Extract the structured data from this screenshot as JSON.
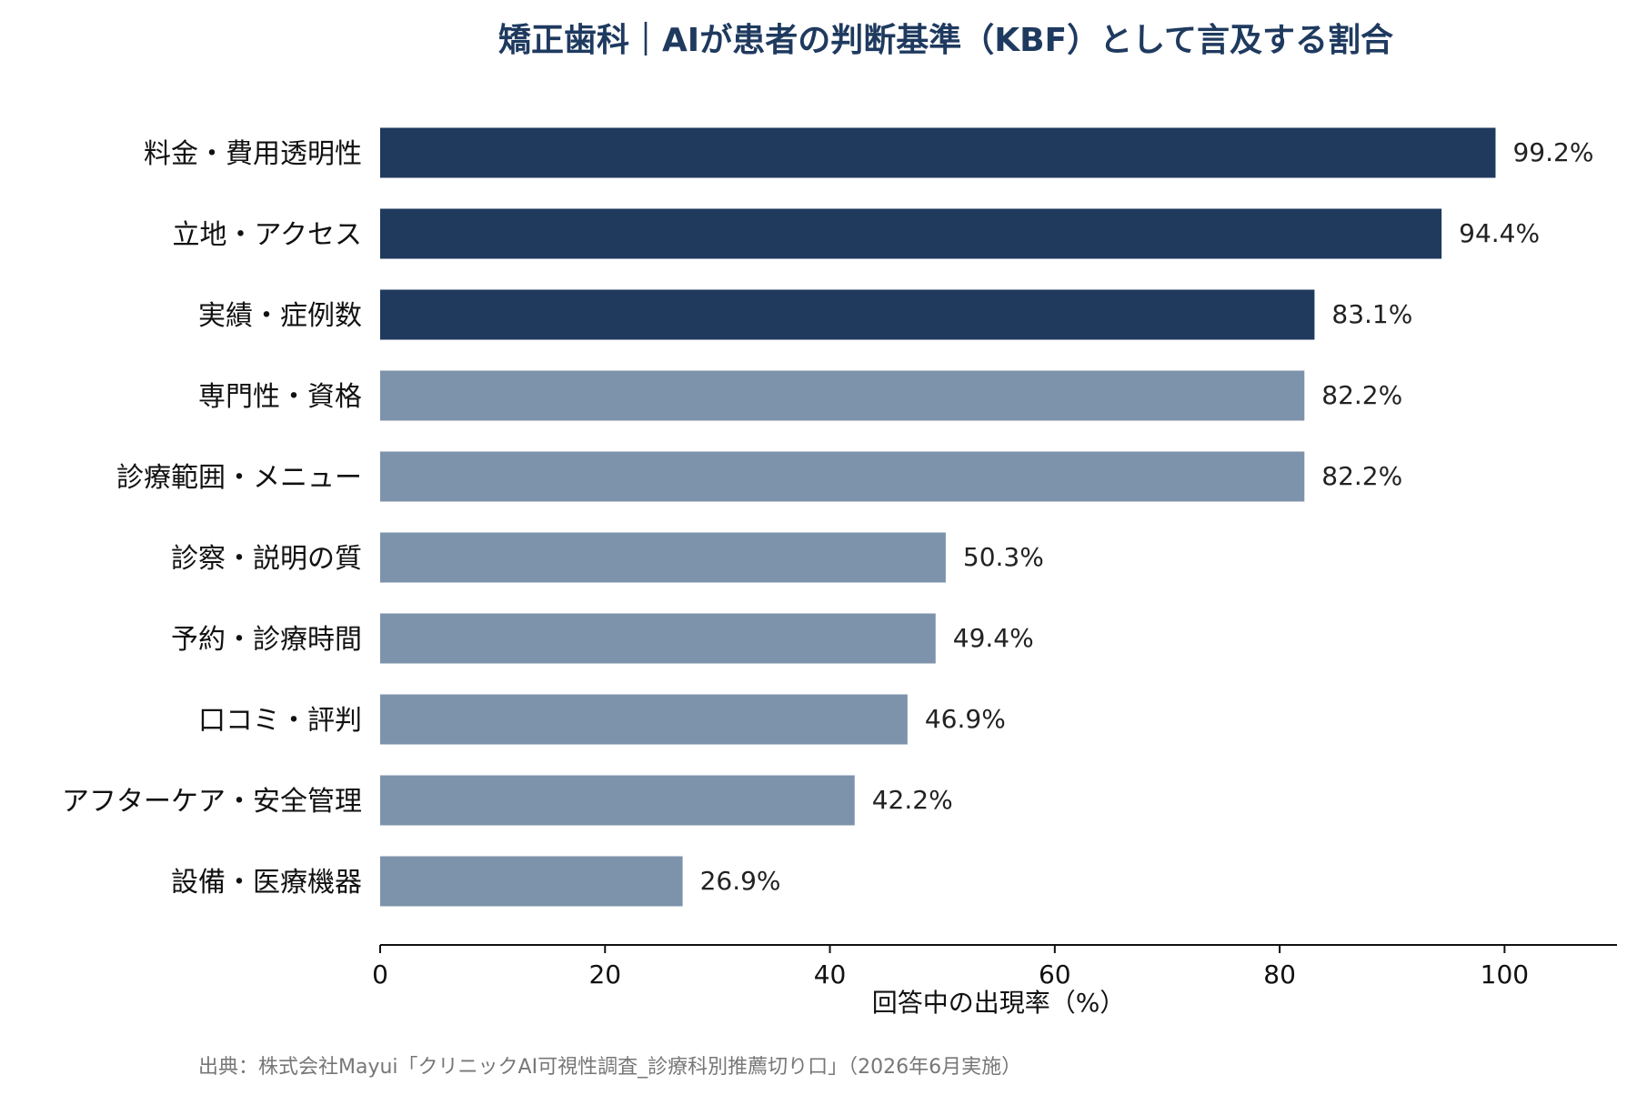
{
  "chart_data": {
    "type": "bar",
    "orientation": "horizontal",
    "title": "矯正歯科｜AIが患者の判断基準（KBF）として言及する割合",
    "categories": [
      "料金・費用透明性",
      "立地・アクセス",
      "実績・症例数",
      "専門性・資格",
      "診療範囲・メニュー",
      "診察・説明の質",
      "予約・診療時間",
      "口コミ・評判",
      "アフターケア・安全管理",
      "設備・医療機器"
    ],
    "values": [
      99.2,
      94.4,
      83.1,
      82.2,
      82.2,
      50.3,
      49.4,
      46.9,
      42.2,
      26.9
    ],
    "value_labels": [
      "99.2%",
      "94.4%",
      "83.1%",
      "82.2%",
      "82.2%",
      "50.3%",
      "49.4%",
      "46.9%",
      "42.2%",
      "26.9%"
    ],
    "highlight_count": 3,
    "xlabel": "回答中の出現率（%）",
    "ylabel": "",
    "xlim": [
      0,
      110
    ],
    "xticks": [
      0,
      20,
      40,
      60,
      80,
      100
    ],
    "xtick_labels": [
      "0",
      "20",
      "40",
      "60",
      "80",
      "100"
    ],
    "grid": false,
    "legend": "none",
    "colors": {
      "highlight": "#203a5e",
      "normal": "#7d93ab",
      "title": "#1f3a5f",
      "axis": "#111111"
    }
  },
  "source": "出典：株式会社Mayui「クリニックAI可視性調査_診療科別推薦切り口」（2026年6月実施）"
}
